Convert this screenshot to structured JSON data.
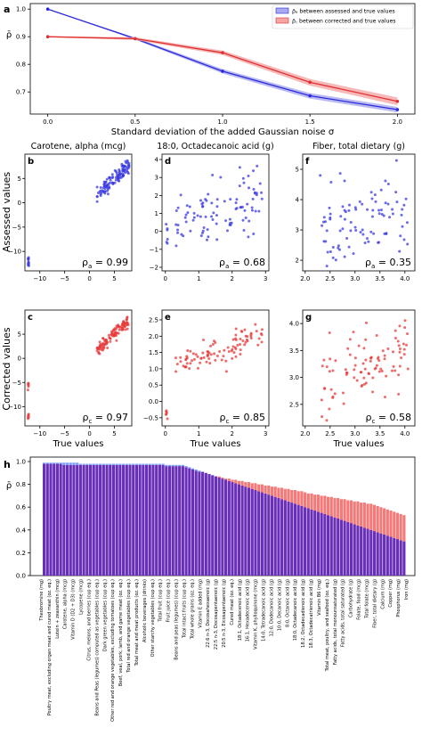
{
  "chart_data": [
    {
      "type": "line",
      "panel": "a",
      "xlabel": "Standard deviation of the added Gaussian noise σ",
      "ylabel": "ρ̄",
      "x": [
        0.0,
        0.5,
        1.0,
        1.5,
        2.0
      ],
      "x_ticks": [
        "0.0",
        "0.5",
        "1.0",
        "1.5",
        "2.0"
      ],
      "y_ticks": [
        "0.7",
        "0.8",
        "0.9",
        "1.0"
      ],
      "xlim": [
        -0.1,
        2.1
      ],
      "ylim": [
        0.62,
        1.02
      ],
      "legend_position": "top-right",
      "series": [
        {
          "name": "ρ̄ₐ between assessed and true values",
          "color": "#2b2bd9",
          "band": "#a9a9f0",
          "values": [
            1.0,
            0.893,
            0.775,
            0.686,
            0.636
          ],
          "band_halfwidth": [
            0.0,
            0.004,
            0.008,
            0.01,
            0.01
          ]
        },
        {
          "name": "ρ̄꜀ between corrected and true values",
          "color": "#e03030",
          "band": "#f4a6a6",
          "values": [
            0.9,
            0.893,
            0.842,
            0.735,
            0.666
          ],
          "band_halfwidth": [
            0.002,
            0.005,
            0.008,
            0.012,
            0.014
          ]
        }
      ]
    },
    {
      "type": "scatter",
      "panels": [
        {
          "panel": "b",
          "title": "Carotene, alpha (mcg)",
          "row": "assessed",
          "x_ticks": [
            "−10",
            "−5",
            "0",
            "5"
          ],
          "y_ticks": [
            "−10",
            "−5",
            "0",
            "5"
          ],
          "xlim": [
            -13,
            8.5
          ],
          "ylim": [
            -14,
            10
          ],
          "rho_label": "ρ",
          "rho_sub": "a",
          "rho_value": "= 0.99"
        },
        {
          "panel": "d",
          "title": "18:0, Octadecanoic acid (g)",
          "row": "assessed",
          "x_ticks": [
            "0",
            "1",
            "2",
            "3"
          ],
          "y_ticks": [
            "−2",
            "−1",
            "0",
            "1",
            "2",
            "3",
            "4"
          ],
          "xlim": [
            -0.1,
            3.1
          ],
          "ylim": [
            -2.2,
            4.3
          ],
          "rho_label": "ρ",
          "rho_sub": "a",
          "rho_value": "= 0.68"
        },
        {
          "panel": "f",
          "title": "Fiber, total dietary (g)",
          "row": "assessed",
          "x_ticks": [
            "2.0",
            "2.5",
            "3.0",
            "3.5",
            "4.0"
          ],
          "y_ticks": [
            "2",
            "3",
            "4",
            "5"
          ],
          "xlim": [
            1.95,
            4.2
          ],
          "ylim": [
            1.65,
            5.5
          ],
          "rho_label": "ρ",
          "rho_sub": "a",
          "rho_value": "= 0.35"
        },
        {
          "panel": "c",
          "title": "",
          "row": "corrected",
          "x_ticks": [
            "−10",
            "−5",
            "0",
            "5"
          ],
          "y_ticks": [
            "−10",
            "−5",
            "0",
            "5"
          ],
          "xlim": [
            -13,
            8.5
          ],
          "ylim": [
            -14,
            10
          ],
          "rho_label": "ρ",
          "rho_sub": "c",
          "rho_value": "= 0.97"
        },
        {
          "panel": "e",
          "title": "",
          "row": "corrected",
          "x_ticks": [
            "0",
            "1",
            "2",
            "3"
          ],
          "y_ticks": [
            "−0.5",
            "0.0",
            "0.5",
            "1.0",
            "1.5",
            "2.0",
            "2.5"
          ],
          "xlim": [
            -0.1,
            3.1
          ],
          "ylim": [
            -0.75,
            2.8
          ],
          "rho_label": "ρ",
          "rho_sub": "c",
          "rho_value": "= 0.85"
        },
        {
          "panel": "g",
          "title": "",
          "row": "corrected",
          "x_ticks": [
            "2.0",
            "2.5",
            "3.0",
            "3.5",
            "4.0"
          ],
          "y_ticks": [
            "2.5",
            "3.0",
            "3.5",
            "4.0"
          ],
          "xlim": [
            1.95,
            4.2
          ],
          "ylim": [
            2.1,
            4.25
          ],
          "rho_label": "ρ",
          "rho_sub": "c",
          "rho_value": "= 0.58"
        }
      ],
      "row_labels": {
        "assessed": "Assessed values",
        "corrected": "Corrected values"
      },
      "xlabel": "True values",
      "colors": {
        "assessed": "#3a3ae0",
        "corrected": "#e83a3a"
      }
    },
    {
      "type": "bar",
      "panel": "h",
      "ylabel": "ρ̄",
      "y_ticks": [
        "0.0",
        "0.2",
        "0.4",
        "0.6",
        "0.8",
        "1.0"
      ],
      "ylim": [
        0,
        1.0
      ],
      "colors": {
        "overlap": "#6a2fb8",
        "assessed": "#7a9cff",
        "corrected": "#f47a7a"
      },
      "bar_count": 110,
      "categories_visible": [
        "Theobromine (mg)",
        "Poultry meat, excluding organ meat and cured meat (oz. eq.)",
        "Lutein + zeaxanthin (mcg)",
        "Carotene, alpha (mcg)",
        "Vitamin D (D2 + D3) (mcg)",
        "Lycopene (mcg)",
        "Citrus, melons, and berries (cup eq.)",
        "Beans and Peas (legumes) computed as vegetables (cup eq.)",
        "Dark green vegetables (cup eq.)",
        "Other red and orange vegetables, excluding tomatoes (cup eq.)",
        "Beef, veal, pork, lamb, and game meat (oz. eq.)",
        "Total red and orange vegetables (cup eq.)",
        "Total meat and meat products (oz. eq.)",
        "Alcoholic beverages (drinks)",
        "Other starchy vegetables (cup eq.)",
        "Total fruit (cup eq.)",
        "Fruit juice (cup eq.)",
        "Beans and peas (legumes) (cup eq.)",
        "Total intact fruits (cup eq.)",
        "Total whole grains (oz. eq.)",
        "Vitamin E added (mg)",
        "22:6 n-3, Docosahexaenoic (g)",
        "22:5 n-3, Docosapentaenoic (g)",
        "20:5 n-3, Eicosapentaenoic (g)",
        "Cured meat (oz. eq.)",
        "18:1, Octadecenoic acid (g)",
        "16:1, Hexadecenoic acid (g)",
        "Vitamin K, phylloquinone (mcg)",
        "14:0, Tetradecanoic acid (g)",
        "12:0, Dodecanoic acid (g)",
        "10:0, Decanoic acid (g)",
        "8:0, Octanoic acid (g)",
        "18:0, Octadecanoic acid (g)",
        "18:2, Octadecadienoic acid (g)",
        "18:3, Octadecatrienoic acid (g)",
        "Vitamin B6 (mg)",
        "Total meat, poultry, and seafood (oz. eq.)",
        "Fatty acids, total monounsaturated (g)",
        "Fatty acids, total saturated (g)",
        "Carbohydrate (g)",
        "Folate, food (mcg)",
        "Total folate (mcg)",
        "Fiber, total dietary (g)",
        "Calcium (mg)",
        "Copper (mg)",
        "Phosphorus (mg)",
        "Iron (mg)"
      ],
      "series": [
        {
          "name": "assessed",
          "values": [
            0.99,
            0.99,
            0.99,
            0.99,
            0.99,
            0.99,
            0.99,
            0.99,
            0.99,
            0.99,
            0.99,
            0.98,
            0.98,
            0.98,
            0.98,
            0.98,
            0.98,
            0.98,
            0.98,
            0.98,
            0.98,
            0.98,
            0.98,
            0.98,
            0.98,
            0.98,
            0.98,
            0.98,
            0.98,
            0.98,
            0.98,
            0.98,
            0.98,
            0.98,
            0.98,
            0.98,
            0.98,
            0.97,
            0.97,
            0.97,
            0.97,
            0.97,
            0.97,
            0.96,
            0.95,
            0.94,
            0.93,
            0.92,
            0.91,
            0.9,
            0.89,
            0.88,
            0.87,
            0.86,
            0.85,
            0.84,
            0.83,
            0.82,
            0.81,
            0.8,
            0.79,
            0.78,
            0.77,
            0.76,
            0.75,
            0.74,
            0.73,
            0.72,
            0.71,
            0.7,
            0.69,
            0.68,
            0.67,
            0.66,
            0.65,
            0.64,
            0.63,
            0.62,
            0.61,
            0.6,
            0.59,
            0.58,
            0.57,
            0.56,
            0.55,
            0.54,
            0.53,
            0.52,
            0.51,
            0.5,
            0.49,
            0.48,
            0.47,
            0.46,
            0.45,
            0.44,
            0.43,
            0.42,
            0.41,
            0.4,
            0.39,
            0.38,
            0.37,
            0.36,
            0.35,
            0.34,
            0.33,
            0.32,
            0.31,
            0.3
          ]
        },
        {
          "name": "corrected",
          "values": [
            0.98,
            0.98,
            0.98,
            0.98,
            0.98,
            0.98,
            0.97,
            0.97,
            0.97,
            0.97,
            0.97,
            0.97,
            0.97,
            0.97,
            0.97,
            0.97,
            0.97,
            0.97,
            0.97,
            0.97,
            0.97,
            0.97,
            0.97,
            0.97,
            0.97,
            0.97,
            0.97,
            0.97,
            0.97,
            0.97,
            0.97,
            0.97,
            0.97,
            0.97,
            0.97,
            0.97,
            0.97,
            0.96,
            0.96,
            0.96,
            0.96,
            0.96,
            0.96,
            0.95,
            0.94,
            0.93,
            0.92,
            0.91,
            0.91,
            0.9,
            0.89,
            0.88,
            0.87,
            0.87,
            0.86,
            0.85,
            0.85,
            0.84,
            0.84,
            0.83,
            0.83,
            0.82,
            0.82,
            0.81,
            0.81,
            0.8,
            0.8,
            0.79,
            0.79,
            0.78,
            0.78,
            0.77,
            0.77,
            0.76,
            0.76,
            0.75,
            0.75,
            0.74,
            0.74,
            0.73,
            0.72,
            0.72,
            0.71,
            0.71,
            0.7,
            0.7,
            0.69,
            0.69,
            0.68,
            0.68,
            0.67,
            0.67,
            0.66,
            0.66,
            0.65,
            0.65,
            0.64,
            0.64,
            0.63,
            0.63,
            0.62,
            0.61,
            0.6,
            0.59,
            0.58,
            0.57,
            0.56,
            0.55,
            0.54,
            0.53
          ]
        }
      ]
    }
  ],
  "panel_letters": {
    "a": "a",
    "b": "b",
    "c": "c",
    "d": "d",
    "e": "e",
    "f": "f",
    "g": "g",
    "h": "h"
  }
}
